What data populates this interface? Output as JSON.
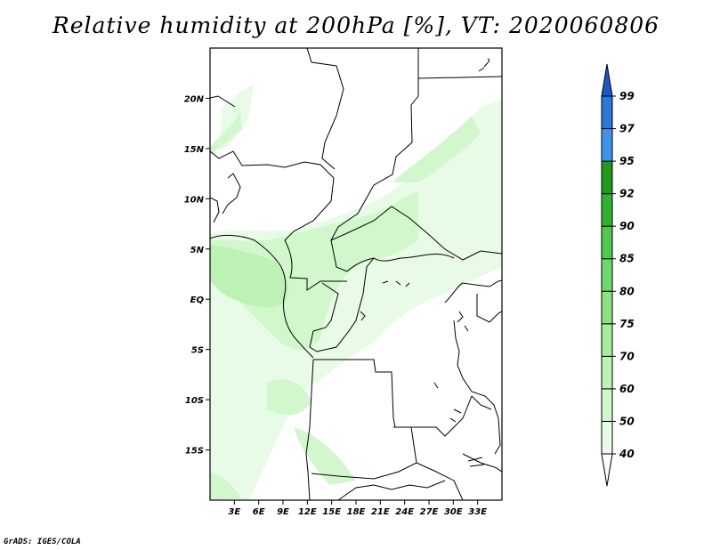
{
  "title": "Relative humidity at 200hPa [%], VT: 2020060806",
  "footer": "GrADS: IGES/COLA",
  "map": {
    "lon_range": [
      0,
      36
    ],
    "lat_range": [
      -20,
      25
    ],
    "lat_labels": [
      "20N",
      "15N",
      "10N",
      "5N",
      "EQ",
      "5S",
      "10S",
      "15S"
    ],
    "lat_values": [
      20,
      15,
      10,
      5,
      0,
      -5,
      -10,
      -15
    ],
    "lon_labels": [
      "3E",
      "6E",
      "9E",
      "12E",
      "15E",
      "18E",
      "21E",
      "24E",
      "27E",
      "30E",
      "33E"
    ],
    "lon_values": [
      3,
      6,
      9,
      12,
      15,
      18,
      21,
      24,
      27,
      30,
      33
    ]
  },
  "colorbar": {
    "levels": [
      "40",
      "50",
      "60",
      "70",
      "75",
      "80",
      "85",
      "90",
      "92",
      "95",
      "97",
      "99"
    ],
    "colors": [
      "#e8fbe6",
      "#d2f7cd",
      "#bcf2b4",
      "#a6ec9a",
      "#8ee283",
      "#6fd86a",
      "#4fc84f",
      "#30b230",
      "#1f9a1f",
      "#3f93e8",
      "#2c78d8",
      "#1c58c4"
    ],
    "low_color": "#ffffff"
  }
}
